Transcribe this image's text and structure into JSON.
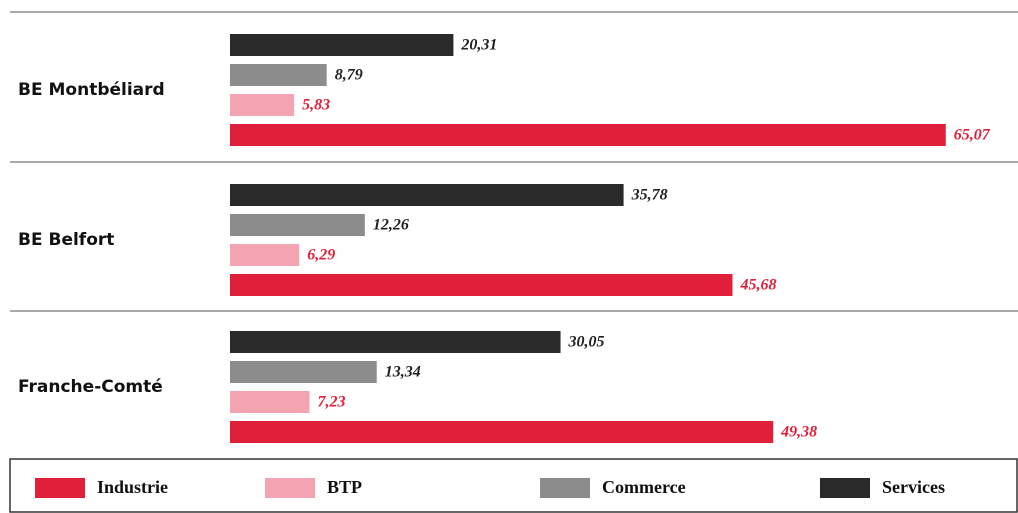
{
  "chart_data": {
    "type": "bar",
    "orientation": "horizontal",
    "categories": [
      "BE Montbéliard",
      "BE Belfort",
      "Franche-Comté"
    ],
    "series": [
      {
        "name": "Industrie",
        "color": "#e0203a",
        "values": [
          65.07,
          45.68,
          49.38
        ],
        "value_labels": [
          "65,07",
          "45,68",
          "49,38"
        ]
      },
      {
        "name": "BTP",
        "color": "#f4a3b2",
        "values": [
          5.83,
          6.29,
          7.23
        ],
        "value_labels": [
          "5,83",
          "6,29",
          "7,23"
        ]
      },
      {
        "name": "Commerce",
        "color": "#8c8c8c",
        "values": [
          8.79,
          12.26,
          13.34
        ],
        "value_labels": [
          "8,79",
          "12,26",
          "13,34"
        ]
      },
      {
        "name": "Services",
        "color": "#2a2a2a",
        "values": [
          20.31,
          35.78,
          30.05
        ],
        "value_labels": [
          "20,31",
          "35,78",
          "30,05"
        ]
      }
    ]
  }
}
